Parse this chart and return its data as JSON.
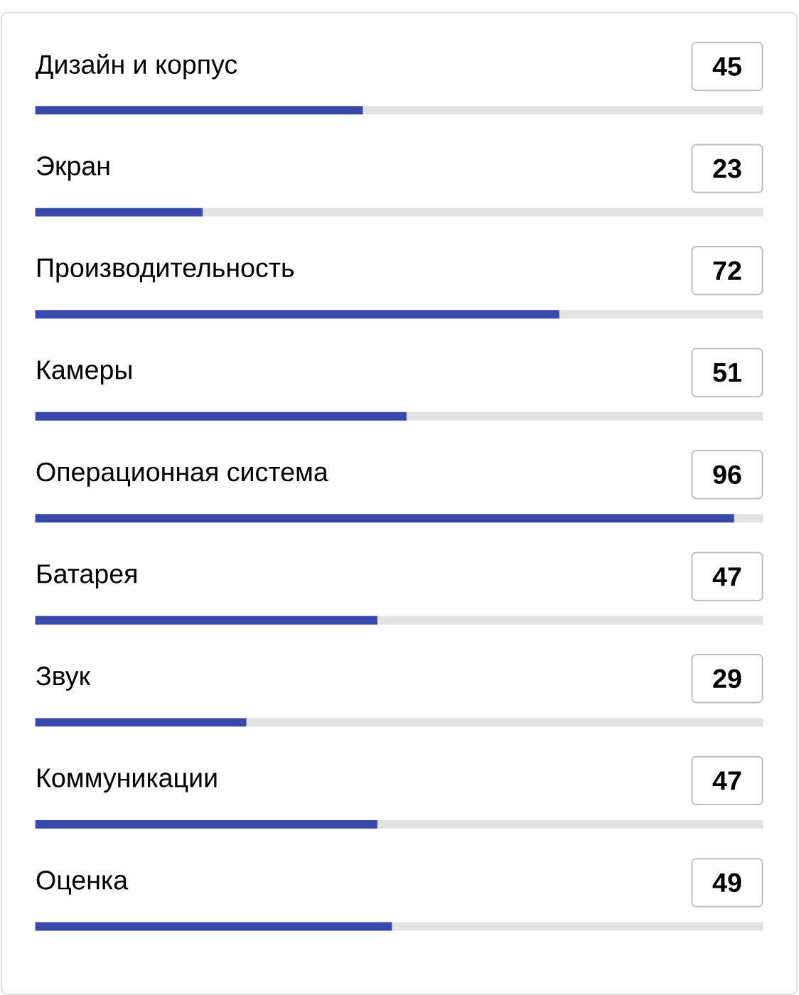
{
  "chart_data": {
    "type": "bar",
    "orientation": "horizontal",
    "categories": [
      "Дизайн и корпус",
      "Экран",
      "Производительность",
      "Камеры",
      "Операционная система",
      "Батарея",
      "Звук",
      "Коммуникации",
      "Оценка"
    ],
    "values": [
      45,
      23,
      72,
      51,
      96,
      47,
      29,
      47,
      49
    ],
    "color": "#3949ab",
    "xlim": [
      0,
      100
    ],
    "data_labels": true
  }
}
